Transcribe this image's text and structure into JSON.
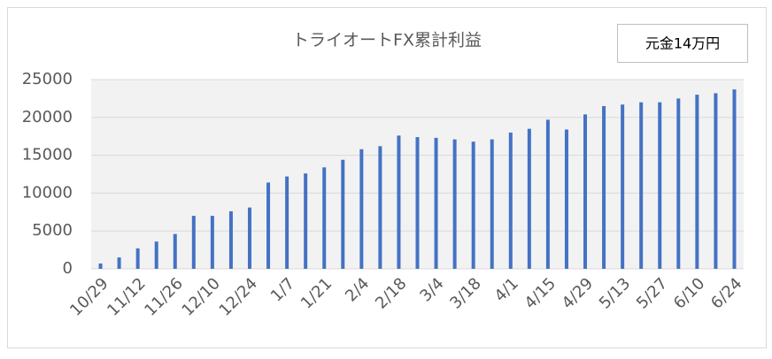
{
  "chart_data": {
    "type": "bar",
    "title": "トライオートFX累計利益",
    "annotation": "元金14万円",
    "categories": [
      "10/29",
      null,
      "11/12",
      null,
      "11/26",
      null,
      "12/10",
      null,
      "12/24",
      null,
      "1/7",
      null,
      "1/21",
      null,
      "2/4",
      null,
      "2/18",
      null,
      "3/4",
      null,
      "3/18",
      null,
      "4/1",
      null,
      "4/15",
      null,
      "4/29",
      null,
      "5/13",
      null,
      "5/27",
      null,
      "6/10",
      null,
      "6/24"
    ],
    "values": [
      700,
      1500,
      2700,
      3600,
      4600,
      7000,
      7000,
      7600,
      8100,
      11400,
      12200,
      12600,
      13400,
      14400,
      15800,
      16200,
      17600,
      17400,
      17300,
      17100,
      16800,
      17100,
      18000,
      18500,
      19700,
      18400,
      20400,
      21500,
      21700,
      22000,
      22000,
      22500,
      23000,
      23200,
      23700
    ],
    "color": "#4472c4",
    "ylim": [
      0,
      25000
    ],
    "yticks": [
      0,
      5000,
      10000,
      15000,
      20000,
      25000
    ],
    "grid": true
  }
}
